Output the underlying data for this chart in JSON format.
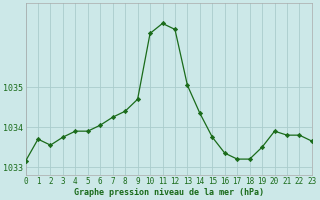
{
  "hours": [
    0,
    1,
    2,
    3,
    4,
    5,
    6,
    7,
    8,
    9,
    10,
    11,
    12,
    13,
    14,
    15,
    16,
    17,
    18,
    19,
    20,
    21,
    22,
    23
  ],
  "pressure": [
    1033.15,
    1033.7,
    1033.55,
    1033.75,
    1033.9,
    1033.9,
    1034.05,
    1034.25,
    1034.4,
    1034.7,
    1036.35,
    1036.6,
    1036.45,
    1035.05,
    1034.35,
    1033.75,
    1033.35,
    1033.2,
    1033.2,
    1033.5,
    1033.9,
    1033.8,
    1033.8,
    1033.65
  ],
  "line_color": "#1a6b1a",
  "marker_color": "#1a6b1a",
  "bg_color": "#cce8e8",
  "grid_color": "#aacccc",
  "xlabel": "Graphe pression niveau de la mer (hPa)",
  "xlabel_color": "#1a6b1a",
  "ylabel_ticks": [
    1033,
    1034,
    1035
  ],
  "ylim": [
    1032.8,
    1037.1
  ],
  "xlim": [
    0,
    23
  ],
  "tick_color": "#1a6b1a",
  "spine_color": "#aaaaaa",
  "tick_fontsize": 5.5,
  "label_fontsize": 6.0
}
